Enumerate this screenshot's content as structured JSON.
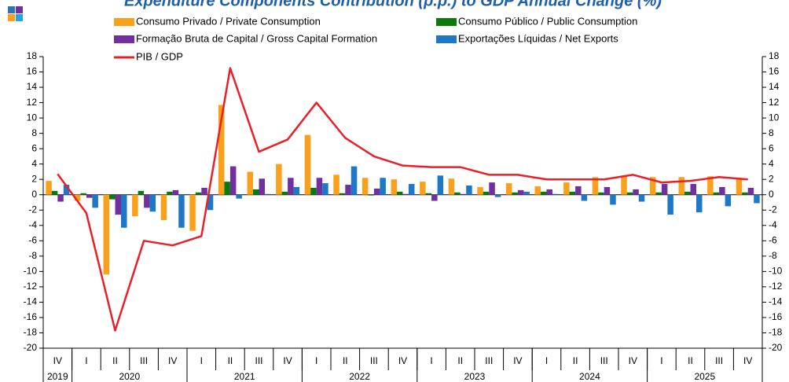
{
  "chart_data": {
    "type": "bar_line",
    "title": "Expenditure Components Contribution (p.p.) to GDP Annual Change (%)",
    "categories": [
      "IV",
      "I",
      "II",
      "III",
      "IV",
      "I",
      "II",
      "III",
      "IV",
      "I",
      "II",
      "III",
      "IV",
      "I",
      "II",
      "III",
      "IV",
      "I",
      "II",
      "III",
      "IV",
      "I",
      "II",
      "III",
      "IV"
    ],
    "x_groups": [
      {
        "label": "2019",
        "size": 1
      },
      {
        "label": "2020",
        "size": 4
      },
      {
        "label": "2021",
        "size": 4
      },
      {
        "label": "2022",
        "size": 4
      },
      {
        "label": "2023",
        "size": 4
      },
      {
        "label": "2024",
        "size": 4
      },
      {
        "label": "2025",
        "size": 4
      }
    ],
    "series": [
      {
        "name": "Consumo Privado / Private Consumption",
        "color": "#F9A11B",
        "kind": "bar",
        "values": [
          1.8,
          -0.8,
          -10.4,
          -2.8,
          -3.3,
          -4.7,
          11.7,
          3.0,
          4.0,
          7.8,
          2.6,
          2.2,
          2.0,
          1.7,
          2.1,
          1.0,
          1.5,
          1.1,
          1.6,
          2.3,
          2.5,
          2.3,
          2.3,
          2.4,
          2.2
        ]
      },
      {
        "name": "Consumo Público / Public Consumption",
        "color": "#0B7A0B",
        "kind": "bar",
        "values": [
          0.5,
          0.2,
          -0.6,
          0.5,
          0.4,
          0.3,
          1.7,
          0.7,
          0.4,
          0.9,
          0.2,
          -0.1,
          0.4,
          0.2,
          0.3,
          0.4,
          0.3,
          0.4,
          0.4,
          0.3,
          0.3,
          0.3,
          0.4,
          0.3,
          0.3
        ]
      },
      {
        "name": "Formação Bruta de Capital / Gross Capital Formation",
        "color": "#7030A0",
        "kind": "bar",
        "values": [
          -0.9,
          -0.4,
          -2.6,
          -1.7,
          0.6,
          0.9,
          3.7,
          2.1,
          2.2,
          2.2,
          1.3,
          0.8,
          0.1,
          -0.8,
          0.1,
          1.6,
          0.6,
          0.7,
          1.1,
          1.0,
          0.7,
          1.4,
          1.4,
          1.0,
          0.9
        ]
      },
      {
        "name": "Exportações Líquidas / Net Exports",
        "color": "#1F77C8",
        "kind": "bar",
        "values": [
          1.3,
          -1.7,
          -4.3,
          -2.2,
          -4.3,
          -2.0,
          -0.5,
          0.1,
          1.0,
          1.5,
          3.7,
          2.2,
          1.4,
          2.5,
          1.2,
          -0.3,
          0.4,
          0.1,
          -0.8,
          -1.3,
          -0.9,
          -2.6,
          -2.3,
          -1.5,
          -1.1
        ]
      },
      {
        "name": "PIB / GDP",
        "color": "#E8202A",
        "kind": "line",
        "values": [
          2.7,
          -2.4,
          -17.7,
          -6.0,
          -6.6,
          -5.4,
          16.5,
          5.6,
          7.2,
          12.0,
          7.4,
          5.0,
          3.8,
          3.6,
          3.6,
          2.6,
          2.6,
          2.0,
          2.0,
          2.0,
          2.6,
          1.6,
          1.8,
          2.3,
          2.0
        ]
      }
    ],
    "ylim": [
      -20,
      18
    ],
    "yticks": [
      -20,
      -18,
      -16,
      -14,
      -12,
      -10,
      -8,
      -6,
      -4,
      -2,
      0,
      2,
      4,
      6,
      8,
      10,
      12,
      14,
      16,
      18
    ],
    "right_axis_mirror": true,
    "grid": false
  }
}
